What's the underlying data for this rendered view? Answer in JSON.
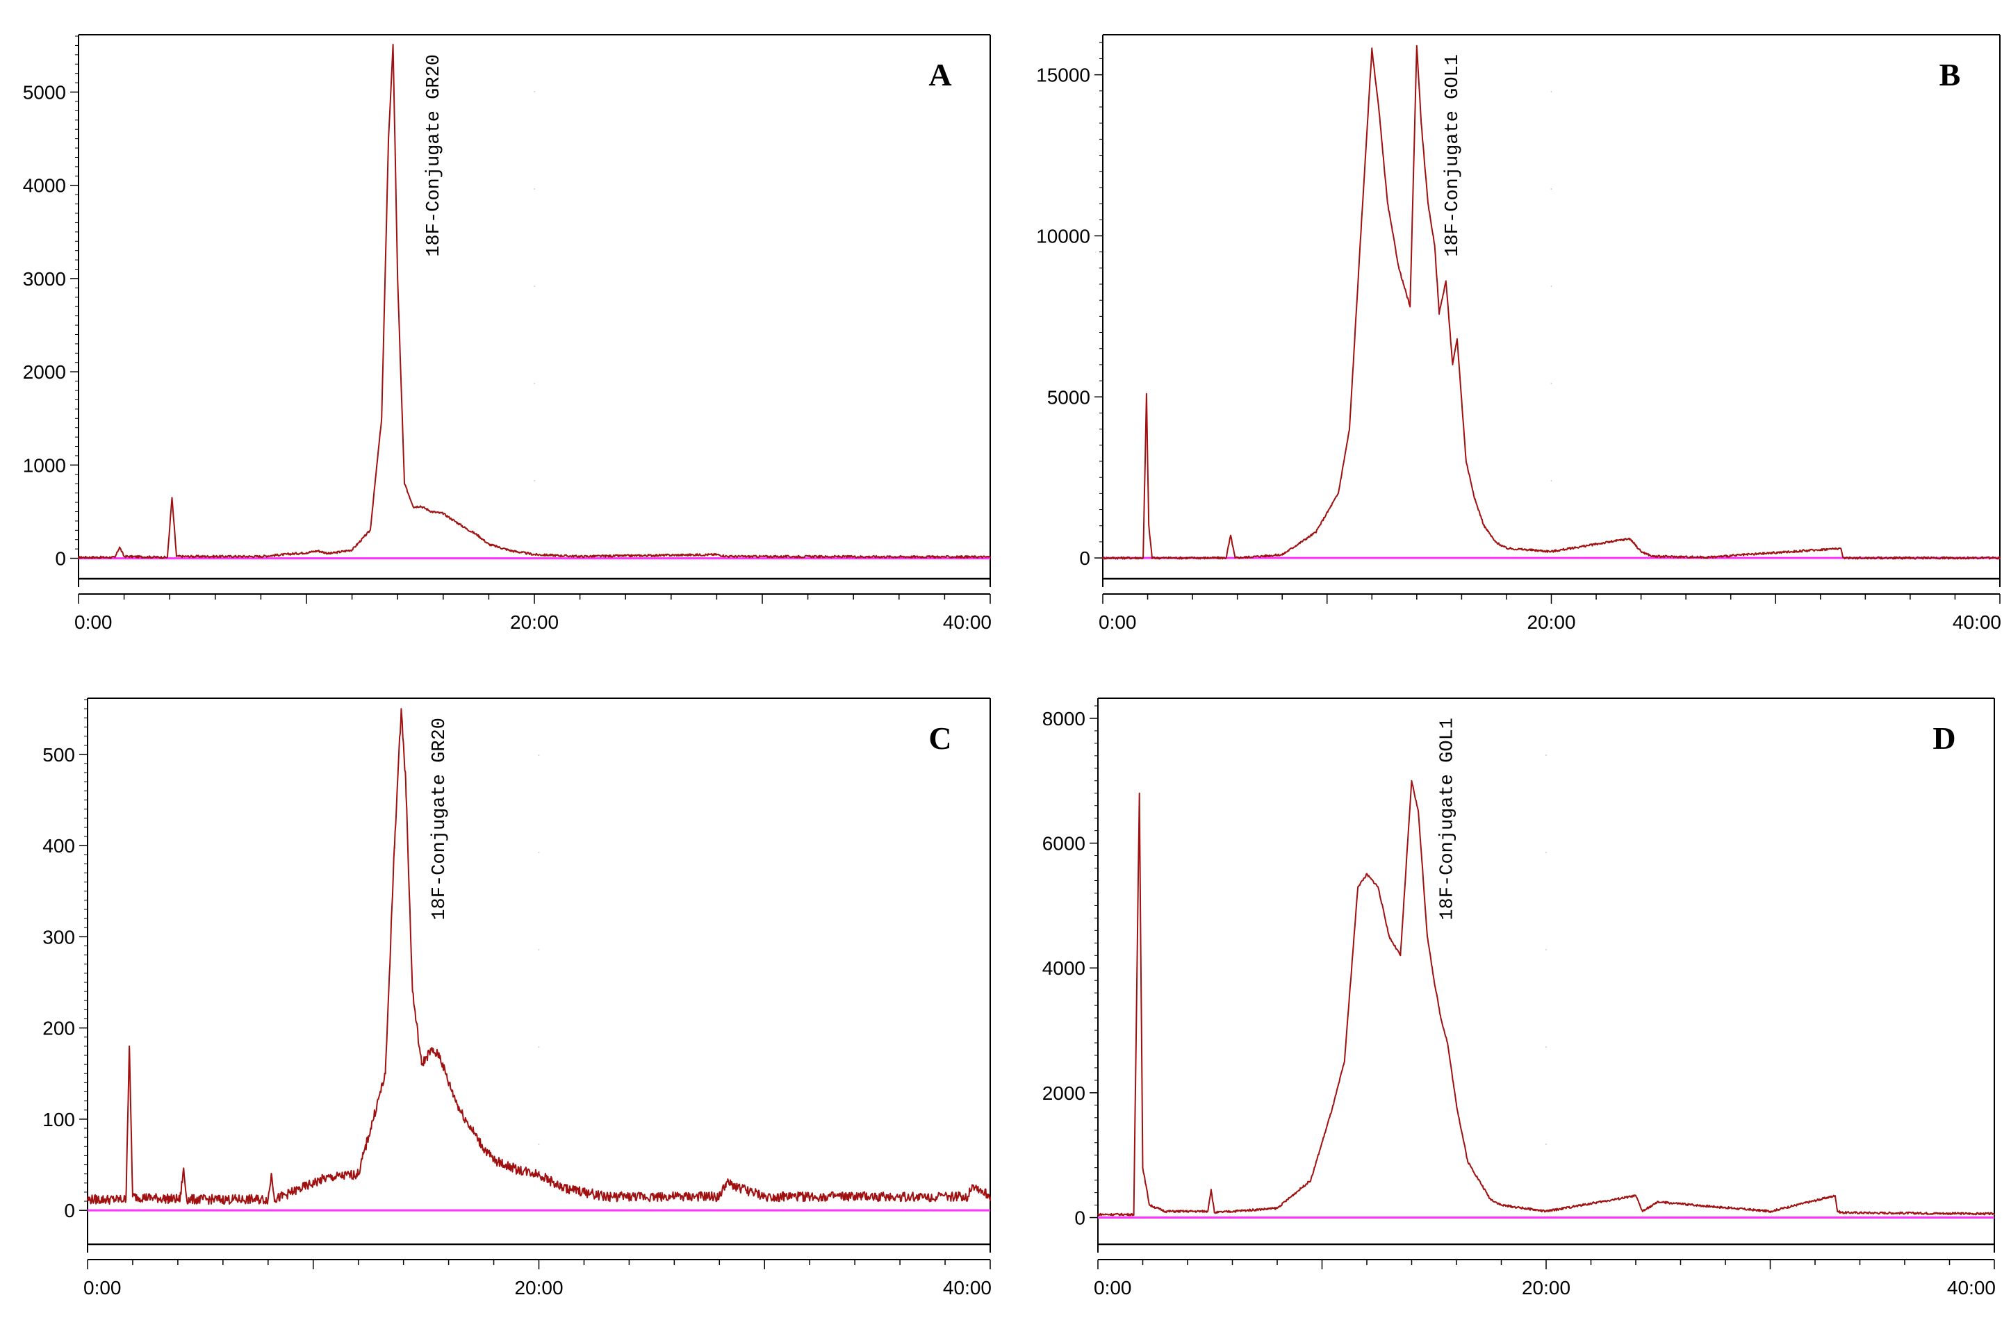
{
  "figure": {
    "description_source": "Four radio-HPLC chromatograms arranged in a 2x2 grid",
    "baseline_color": "#ff33ff",
    "trace_color": "#a01010"
  },
  "chart_data": [
    {
      "type": "line",
      "panel_label": "A",
      "annotation": "18F-Conjugate GR20",
      "x_ticks": [
        "0:00",
        "20:00",
        "40:00"
      ],
      "x_range_min": [
        0,
        40
      ],
      "y_ticks": [
        0,
        1000,
        2000,
        3000,
        4000,
        5000
      ],
      "ylim": [
        -100,
        5600
      ],
      "series": [
        {
          "name": "radio signal",
          "x": [
            0,
            1.6,
            1.8,
            2.0,
            3.9,
            4.1,
            4.3,
            8,
            10,
            10.5,
            11,
            12,
            12.8,
            13.3,
            13.6,
            13.8,
            14.0,
            14.3,
            14.7,
            15.0,
            15.5,
            16.0,
            16.5,
            17.0,
            17.5,
            18.0,
            19.0,
            20.0,
            22,
            28,
            28.5,
            40
          ],
          "y": [
            10,
            10,
            120,
            20,
            10,
            650,
            20,
            20,
            60,
            80,
            50,
            90,
            300,
            1500,
            4500,
            5500,
            3000,
            800,
            550,
            560,
            500,
            480,
            400,
            320,
            250,
            150,
            80,
            40,
            20,
            40,
            20,
            15
          ]
        }
      ]
    },
    {
      "type": "line",
      "panel_label": "B",
      "annotation": "18F-Conjugate GOL1",
      "x_ticks": [
        "0:00",
        "20:00",
        "40:00"
      ],
      "x_range_min": [
        0,
        40
      ],
      "y_ticks": [
        0,
        5000,
        10000,
        15000
      ],
      "ylim": [
        -300,
        16200
      ],
      "series": [
        {
          "name": "radio signal",
          "x": [
            0,
            1.8,
            1.95,
            2.05,
            2.2,
            5.5,
            5.7,
            5.9,
            8,
            9.5,
            10.5,
            11.0,
            11.5,
            12.0,
            12.3,
            12.7,
            13.2,
            13.7,
            14.0,
            14.2,
            14.5,
            14.8,
            15.0,
            15.3,
            15.6,
            15.8,
            16.2,
            16.6,
            17.0,
            17.5,
            18.0,
            20.0,
            23.5,
            24.0,
            24.5,
            27,
            32.9,
            33.0,
            33.1,
            40
          ],
          "y": [
            0,
            0,
            5100,
            1000,
            0,
            0,
            700,
            0,
            100,
            800,
            2000,
            4000,
            10000,
            15800,
            14000,
            11000,
            9000,
            7800,
            15900,
            13500,
            11000,
            9700,
            7600,
            8600,
            6000,
            6800,
            3000,
            1800,
            1000,
            500,
            300,
            200,
            600,
            200,
            50,
            20,
            300,
            20,
            0,
            0
          ]
        }
      ]
    },
    {
      "type": "line",
      "panel_label": "C",
      "annotation": "18F-Conjugate GR20",
      "x_ticks": [
        "0:00",
        "20:00",
        "40:00"
      ],
      "x_range_min": [
        0,
        40
      ],
      "y_ticks": [
        0,
        100,
        200,
        300,
        400,
        500
      ],
      "ylim": [
        -25,
        560
      ],
      "series": [
        {
          "name": "radio signal",
          "x": [
            0,
            1.7,
            1.85,
            2.0,
            4.1,
            4.25,
            4.4,
            8.0,
            8.15,
            8.3,
            10.5,
            12,
            13.2,
            13.6,
            13.9,
            14.1,
            14.4,
            14.8,
            15.2,
            15.6,
            16.0,
            16.5,
            17,
            17.5,
            18,
            19,
            20,
            21,
            23,
            28,
            28.3,
            30,
            39,
            39.2,
            40
          ],
          "y": [
            12,
            12,
            180,
            15,
            12,
            45,
            12,
            12,
            40,
            12,
            35,
            40,
            150,
            400,
            550,
            470,
            240,
            160,
            175,
            170,
            140,
            110,
            90,
            70,
            55,
            45,
            40,
            25,
            15,
            15,
            30,
            15,
            15,
            28,
            15
          ]
        }
      ]
    },
    {
      "type": "line",
      "panel_label": "D",
      "annotation": "18F-Conjugate GOL1",
      "x_ticks": [
        "0:00",
        "20:00",
        "40:00"
      ],
      "x_range_min": [
        0,
        40
      ],
      "y_ticks": [
        0,
        2000,
        4000,
        6000,
        8000
      ],
      "ylim": [
        -250,
        8300
      ],
      "series": [
        {
          "name": "radio signal",
          "x": [
            0,
            1.6,
            1.85,
            2.0,
            2.3,
            3.0,
            4.9,
            5.05,
            5.2,
            8,
            9.5,
            10.5,
            11.0,
            11.6,
            12.0,
            12.5,
            13.0,
            13.5,
            14.0,
            14.3,
            14.7,
            15.0,
            15.3,
            15.6,
            16.0,
            16.5,
            17.0,
            17.5,
            18,
            20,
            24.0,
            24.3,
            25.0,
            30,
            32.9,
            33.0,
            33.2,
            40
          ],
          "y": [
            50,
            50,
            6800,
            800,
            200,
            100,
            100,
            450,
            80,
            150,
            600,
            1800,
            2500,
            5300,
            5500,
            5300,
            4500,
            4200,
            7000,
            6500,
            4500,
            3800,
            3200,
            2800,
            1800,
            900,
            600,
            300,
            200,
            100,
            350,
            100,
            250,
            100,
            350,
            100,
            80,
            60
          ]
        }
      ]
    }
  ]
}
